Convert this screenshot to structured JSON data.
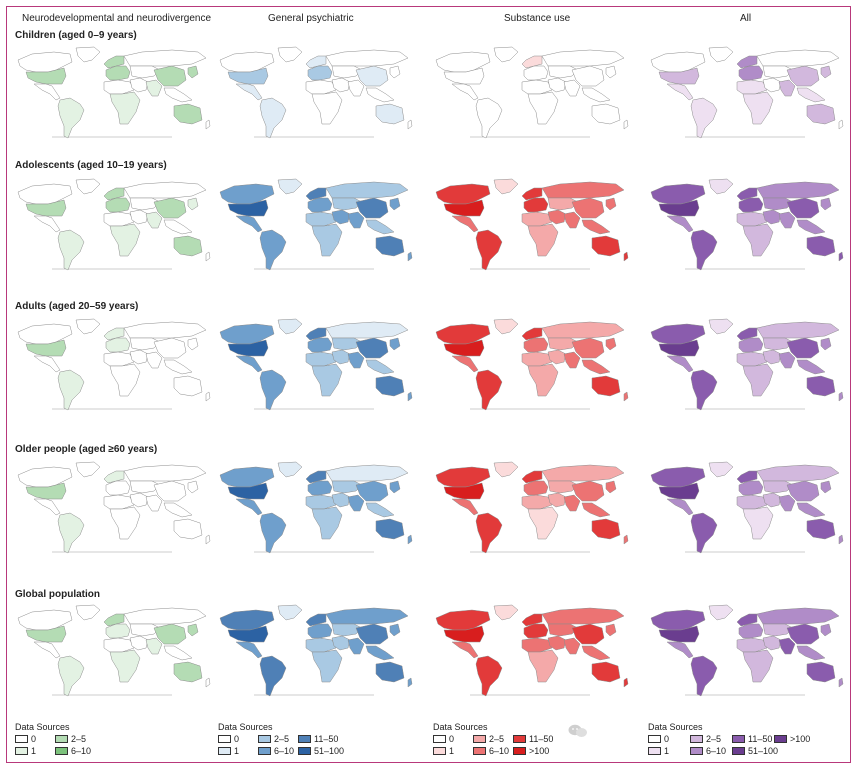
{
  "columns": [
    "Neurodevelopmental and neurodivergence",
    "General psychiatric",
    "Substance use",
    "All"
  ],
  "rows": [
    "Children (aged 0–9 years)",
    "Adolescents (aged 10–19 years)",
    "Adults (aged 20–59 years)",
    "Older people (aged ≥60 years)",
    "Global population"
  ],
  "legend_title": "Data Sources",
  "palettes": {
    "green": [
      "#ffffff",
      "#e3f2e3",
      "#b4dcb4",
      "#7cc27c"
    ],
    "blue": [
      "#ffffff",
      "#dfebf5",
      "#a9c9e3",
      "#6f9fcc",
      "#4f80b6",
      "#2c62a3"
    ],
    "red": [
      "#ffffff",
      "#fbdbdb",
      "#f4a9a9",
      "#ec7373",
      "#e23a3a",
      "#d81e1e"
    ],
    "purple": [
      "#ffffff",
      "#eee0f1",
      "#d2b8dd",
      "#b08cc8",
      "#8a5cad",
      "#6a3d8f"
    ]
  },
  "legends": [
    {
      "palette": "green",
      "items": [
        "0",
        "1",
        "2–5",
        "6–10"
      ]
    },
    {
      "palette": "blue",
      "items": [
        "0",
        "1",
        "2–5",
        "6–10",
        "11–50",
        "51–100"
      ]
    },
    {
      "palette": "red",
      "items": [
        "0",
        "1",
        "2–5",
        "6–10",
        "11–50",
        ">100"
      ]
    },
    {
      "palette": "purple",
      "items": [
        "0",
        "1",
        "2–5",
        "6–10",
        "11–50",
        "51–100",
        ">100"
      ]
    }
  ],
  "chart_data": {
    "type": "heatmap",
    "description_units": "number of data sources per country, binned; map regions approximated",
    "regions": [
      "north_america",
      "usa",
      "mexico_central",
      "south_america",
      "greenland",
      "europe",
      "uk_scandinavia",
      "africa_north",
      "africa_sub",
      "middle_east",
      "russia",
      "central_asia",
      "south_asia",
      "china",
      "east_asia",
      "southeast_asia",
      "australia",
      "new_zealand"
    ],
    "levels": [
      [
        [
          0,
          2,
          0,
          1,
          0,
          2,
          2,
          0,
          1,
          0,
          0,
          0,
          1,
          2,
          2,
          0,
          2,
          0
        ],
        [
          0,
          2,
          1,
          1,
          0,
          2,
          1,
          0,
          0,
          0,
          0,
          0,
          0,
          1,
          0,
          0,
          1,
          0
        ],
        [
          0,
          0,
          0,
          0,
          0,
          0,
          1,
          0,
          0,
          0,
          0,
          0,
          0,
          0,
          0,
          0,
          0,
          0
        ],
        [
          0,
          2,
          1,
          1,
          0,
          3,
          3,
          1,
          1,
          0,
          0,
          0,
          2,
          2,
          2,
          1,
          2,
          0
        ]
      ],
      [
        [
          0,
          2,
          0,
          1,
          0,
          2,
          2,
          0,
          1,
          0,
          0,
          0,
          1,
          2,
          1,
          0,
          2,
          0
        ],
        [
          3,
          5,
          3,
          3,
          1,
          3,
          4,
          2,
          2,
          3,
          2,
          2,
          3,
          4,
          3,
          2,
          4,
          3
        ],
        [
          4,
          5,
          3,
          4,
          1,
          4,
          4,
          2,
          2,
          3,
          3,
          2,
          3,
          3,
          3,
          3,
          4,
          4
        ],
        [
          4,
          5,
          3,
          4,
          1,
          4,
          4,
          2,
          2,
          3,
          3,
          3,
          3,
          4,
          3,
          3,
          4,
          4
        ]
      ],
      [
        [
          0,
          2,
          0,
          1,
          0,
          1,
          1,
          0,
          0,
          0,
          0,
          0,
          0,
          0,
          0,
          0,
          0,
          0
        ],
        [
          3,
          5,
          3,
          3,
          1,
          3,
          4,
          2,
          2,
          2,
          1,
          2,
          3,
          4,
          3,
          2,
          4,
          3
        ],
        [
          4,
          5,
          3,
          4,
          1,
          3,
          4,
          2,
          2,
          2,
          2,
          2,
          3,
          3,
          3,
          3,
          4,
          3
        ],
        [
          4,
          5,
          3,
          4,
          1,
          3,
          4,
          2,
          2,
          2,
          2,
          2,
          3,
          4,
          3,
          3,
          4,
          3
        ]
      ],
      [
        [
          0,
          2,
          0,
          1,
          0,
          0,
          1,
          0,
          0,
          0,
          0,
          0,
          0,
          0,
          0,
          0,
          0,
          0
        ],
        [
          3,
          5,
          3,
          3,
          1,
          3,
          4,
          2,
          2,
          2,
          1,
          2,
          3,
          3,
          3,
          2,
          4,
          3
        ],
        [
          4,
          5,
          3,
          4,
          1,
          3,
          4,
          2,
          1,
          2,
          2,
          2,
          3,
          3,
          3,
          3,
          4,
          3
        ],
        [
          4,
          5,
          3,
          4,
          1,
          3,
          4,
          2,
          1,
          2,
          2,
          2,
          3,
          3,
          3,
          3,
          4,
          3
        ]
      ],
      [
        [
          0,
          2,
          0,
          1,
          0,
          1,
          2,
          0,
          1,
          0,
          0,
          0,
          1,
          2,
          2,
          0,
          2,
          0
        ],
        [
          4,
          5,
          3,
          4,
          1,
          3,
          4,
          2,
          2,
          2,
          3,
          2,
          3,
          4,
          3,
          3,
          4,
          3
        ],
        [
          4,
          5,
          3,
          4,
          1,
          4,
          4,
          3,
          2,
          3,
          3,
          3,
          3,
          4,
          3,
          3,
          4,
          4
        ],
        [
          4,
          5,
          3,
          4,
          1,
          3,
          4,
          2,
          2,
          2,
          3,
          2,
          4,
          4,
          3,
          3,
          4,
          3
        ]
      ]
    ]
  }
}
